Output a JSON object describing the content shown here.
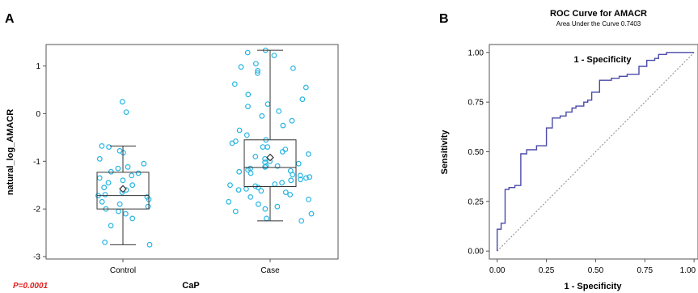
{
  "panel_a": {
    "label": "A",
    "p_value": "P=0.0001",
    "colors": {
      "points": "#29b6e3",
      "box": "#333333",
      "p_value": "#e02020"
    }
  },
  "panel_b": {
    "label": "B",
    "colors": {
      "curve": "#4a4aa8",
      "diagonal": "#888888"
    }
  },
  "chart_data": [
    {
      "type": "box",
      "xlabel": "CaP",
      "ylabel": "natural_log_AMACR",
      "ylim": [
        -3.05,
        1.45
      ],
      "yticks": [
        "1",
        "0",
        "-1",
        "-2",
        "-3"
      ],
      "ytick_values": [
        1,
        0,
        -1,
        -2,
        -3
      ],
      "categories": [
        "Control",
        "Case"
      ],
      "boxes": [
        {
          "name": "Control",
          "whisker_low": -2.75,
          "q1": -2.0,
          "median": -1.72,
          "q3": -1.23,
          "whisker_high": -0.68,
          "mean": -1.58
        },
        {
          "name": "Case",
          "whisker_low": -2.25,
          "q1": -1.53,
          "median": -1.13,
          "q3": -0.55,
          "whisker_high": 1.33,
          "mean": -0.92
        }
      ],
      "points": [
        {
          "group": "Control",
          "values": [
            0.25,
            0.03,
            -0.68,
            -0.7,
            -0.78,
            -0.82,
            -0.95,
            -1.05,
            -1.12,
            -1.15,
            -1.22,
            -1.25,
            -1.3,
            -1.35,
            -1.4,
            -1.45,
            -1.5,
            -1.55,
            -1.6,
            -1.65,
            -1.7,
            -1.72,
            -1.75,
            -1.8,
            -1.85,
            -1.9,
            -1.95,
            -2.0,
            -2.05,
            -2.1,
            -2.2,
            -2.35,
            -2.7,
            -2.75
          ]
        },
        {
          "group": "Case",
          "values": [
            1.33,
            1.28,
            1.22,
            1.05,
            0.98,
            0.95,
            0.9,
            0.85,
            0.62,
            0.55,
            0.4,
            0.3,
            0.2,
            0.15,
            0.05,
            -0.05,
            -0.15,
            -0.25,
            -0.35,
            -0.45,
            -0.55,
            -0.58,
            -0.62,
            -0.7,
            -0.75,
            -0.8,
            -0.85,
            -0.9,
            -0.95,
            -1.0,
            -1.02,
            -1.05,
            -1.1,
            -1.12,
            -1.15,
            -1.18,
            -1.2,
            -1.22,
            -1.25,
            -1.28,
            -1.3,
            -1.33,
            -1.35,
            -1.38,
            -1.4,
            -1.45,
            -1.48,
            -1.5,
            -1.52,
            -1.55,
            -1.58,
            -1.62,
            -1.65,
            -1.7,
            -1.75,
            -1.8,
            -1.85,
            -1.9,
            -1.95,
            -2.0,
            -2.05,
            -2.1,
            -2.2,
            -2.25,
            -1.1,
            -0.7,
            -1.6
          ]
        }
      ]
    },
    {
      "type": "line",
      "title": "ROC Curve for AMACR",
      "subtitle": "Area Under the Curve 0.7403",
      "xlabel": "1 - Specificity",
      "ylabel": "Sensitivity",
      "inner_label": "1 - Specificity",
      "xlim": [
        -0.04,
        1.02
      ],
      "ylim": [
        -0.04,
        1.04
      ],
      "xticks": [
        "0.00",
        "0.25",
        "0.50",
        "0.75",
        "1.00"
      ],
      "yticks": [
        "0.00",
        "0.25",
        "0.50",
        "0.75",
        "1.00"
      ],
      "tick_values": [
        0,
        0.25,
        0.5,
        0.75,
        1
      ],
      "series": [
        {
          "x": [
            0,
            0,
            0.02,
            0.02,
            0.04,
            0.04,
            0.06,
            0.06,
            0.09,
            0.09,
            0.12,
            0.12,
            0.15,
            0.15,
            0.2,
            0.2,
            0.25,
            0.25,
            0.28,
            0.28,
            0.32,
            0.32,
            0.35,
            0.35,
            0.38,
            0.38,
            0.4,
            0.4,
            0.44,
            0.44,
            0.46,
            0.46,
            0.48,
            0.48,
            0.52,
            0.52,
            0.58,
            0.58,
            0.62,
            0.62,
            0.66,
            0.66,
            0.72,
            0.72,
            0.76,
            0.76,
            0.8,
            0.8,
            0.82,
            0.82,
            0.86,
            0.86,
            0.9,
            0.9,
            0.94,
            0.94,
            1.0
          ],
          "y": [
            0,
            0.11,
            0.11,
            0.14,
            0.14,
            0.31,
            0.31,
            0.32,
            0.32,
            0.33,
            0.33,
            0.49,
            0.49,
            0.51,
            0.51,
            0.53,
            0.53,
            0.62,
            0.62,
            0.67,
            0.67,
            0.68,
            0.68,
            0.7,
            0.7,
            0.72,
            0.72,
            0.73,
            0.73,
            0.75,
            0.75,
            0.76,
            0.76,
            0.8,
            0.8,
            0.86,
            0.86,
            0.87,
            0.87,
            0.88,
            0.88,
            0.89,
            0.89,
            0.93,
            0.93,
            0.96,
            0.96,
            0.97,
            0.97,
            0.99,
            0.99,
            1.0,
            1.0,
            1.0,
            1.0,
            1.0,
            1.0
          ]
        }
      ]
    }
  ]
}
